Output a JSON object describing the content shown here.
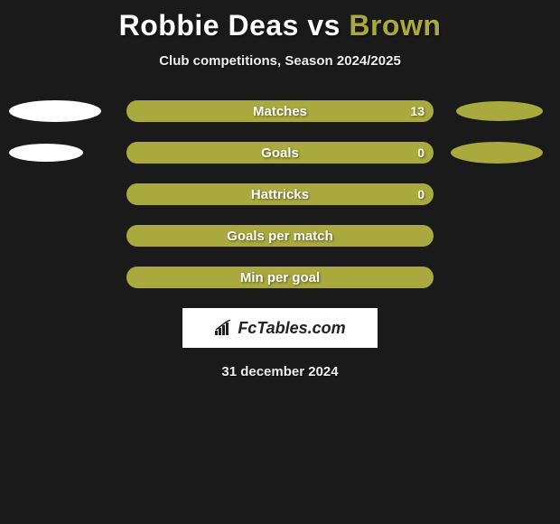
{
  "title": {
    "player1": "Robbie Deas",
    "vs": "vs",
    "player2": "Brown"
  },
  "subtitle": "Club competitions, Season 2024/2025",
  "colors": {
    "player1": "#ffffff",
    "player2": "#a9a93e",
    "background": "#1a1a1a",
    "bar": "#a9a93e",
    "text": "#ffffff"
  },
  "rows": [
    {
      "label": "Matches",
      "value": "13",
      "left_w": 102,
      "left_h": 24,
      "right_w": 96,
      "right_h": 22,
      "show_value": true,
      "show_left": true,
      "show_right": true
    },
    {
      "label": "Goals",
      "value": "0",
      "left_w": 82,
      "left_h": 20,
      "right_w": 102,
      "right_h": 24,
      "show_value": true,
      "show_left": true,
      "show_right": true
    },
    {
      "label": "Hattricks",
      "value": "0",
      "left_w": 0,
      "left_h": 0,
      "right_w": 0,
      "right_h": 0,
      "show_value": true,
      "show_left": false,
      "show_right": false
    },
    {
      "label": "Goals per match",
      "value": "",
      "left_w": 0,
      "left_h": 0,
      "right_w": 0,
      "right_h": 0,
      "show_value": false,
      "show_left": false,
      "show_right": false
    },
    {
      "label": "Min per goal",
      "value": "",
      "left_w": 0,
      "left_h": 0,
      "right_w": 0,
      "right_h": 0,
      "show_value": false,
      "show_left": false,
      "show_right": false
    }
  ],
  "brand": "FcTables.com",
  "date": "31 december 2024"
}
